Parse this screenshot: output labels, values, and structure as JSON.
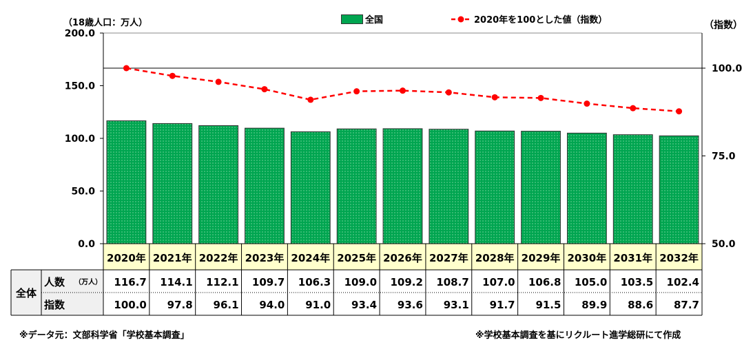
{
  "chart_data": {
    "type": "bar+line",
    "categories": [
      "2020年",
      "2021年",
      "2022年",
      "2023年",
      "2024年",
      "2025年",
      "2026年",
      "2027年",
      "2028年",
      "2029年",
      "2030年",
      "2031年",
      "2032年"
    ],
    "series": [
      {
        "name": "全国",
        "type": "bar",
        "axis": "left",
        "color": "#00a550",
        "values": [
          116.7,
          114.1,
          112.1,
          109.7,
          106.3,
          109.0,
          109.2,
          108.7,
          107.0,
          106.8,
          105.0,
          103.5,
          102.4
        ]
      },
      {
        "name": "2020年を100とした値（指数）",
        "type": "line",
        "axis": "right",
        "color": "#ff0000",
        "style": "dashed",
        "values": [
          100.0,
          97.8,
          96.1,
          94.0,
          91.0,
          93.4,
          93.6,
          93.1,
          91.7,
          91.5,
          89.9,
          88.6,
          87.7
        ]
      }
    ],
    "ylabel_left": "（18歳人口：万人）",
    "ylabel_right": "（指数）",
    "ylim_left": [
      0,
      200
    ],
    "yticks_left": [
      "0.0",
      "50.0",
      "100.0",
      "150.0",
      "200.0"
    ],
    "ylim_right": [
      50,
      110
    ],
    "yticks_right": [
      "50.0",
      "75.0",
      "100.0"
    ],
    "reference_line_right": 100,
    "legend": "top"
  },
  "table": {
    "group_label": "全体",
    "row1_label": "人数",
    "row1_unit": "（万人）",
    "row2_label": "指数",
    "row1": [
      "116.7",
      "114.1",
      "112.1",
      "109.7",
      "106.3",
      "109.0",
      "109.2",
      "108.7",
      "107.0",
      "106.8",
      "105.0",
      "103.5",
      "102.4"
    ],
    "row2": [
      "100.0",
      "97.8",
      "96.1",
      "94.0",
      "91.0",
      "93.4",
      "93.6",
      "93.1",
      "91.7",
      "91.5",
      "89.9",
      "88.6",
      "87.7"
    ]
  },
  "notes": {
    "source": "※データ元：文部科学省「学校基本調査」",
    "credit": "※学校基本調査を基にリクルート進学総研にて作成"
  }
}
